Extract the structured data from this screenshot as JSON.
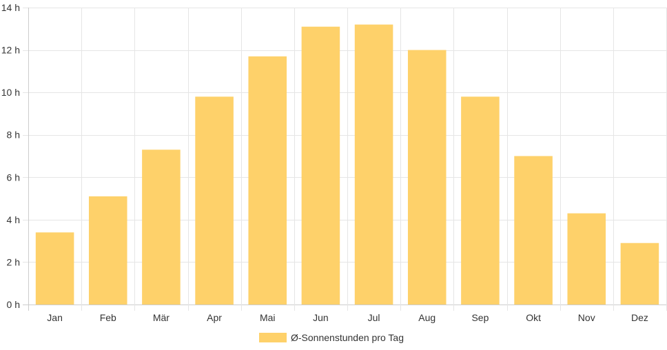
{
  "chart_data": {
    "type": "bar",
    "categories": [
      "Jan",
      "Feb",
      "Mär",
      "Apr",
      "Mai",
      "Jun",
      "Jul",
      "Aug",
      "Sep",
      "Okt",
      "Nov",
      "Dez"
    ],
    "series": [
      {
        "name": "Ø-Sonnenstunden pro Tag",
        "values": [
          3.4,
          5.1,
          7.3,
          9.8,
          11.7,
          13.1,
          13.2,
          12.0,
          9.8,
          7.0,
          4.3,
          2.9
        ],
        "color": "#fed16a"
      }
    ],
    "y_ticks": [
      "0 h",
      "2 h",
      "4 h",
      "6 h",
      "8 h",
      "10 h",
      "12 h",
      "14 h"
    ],
    "ylim": [
      0,
      14
    ],
    "grid": true,
    "legend_position": "bottom",
    "title": "",
    "xlabel": "",
    "ylabel": ""
  }
}
